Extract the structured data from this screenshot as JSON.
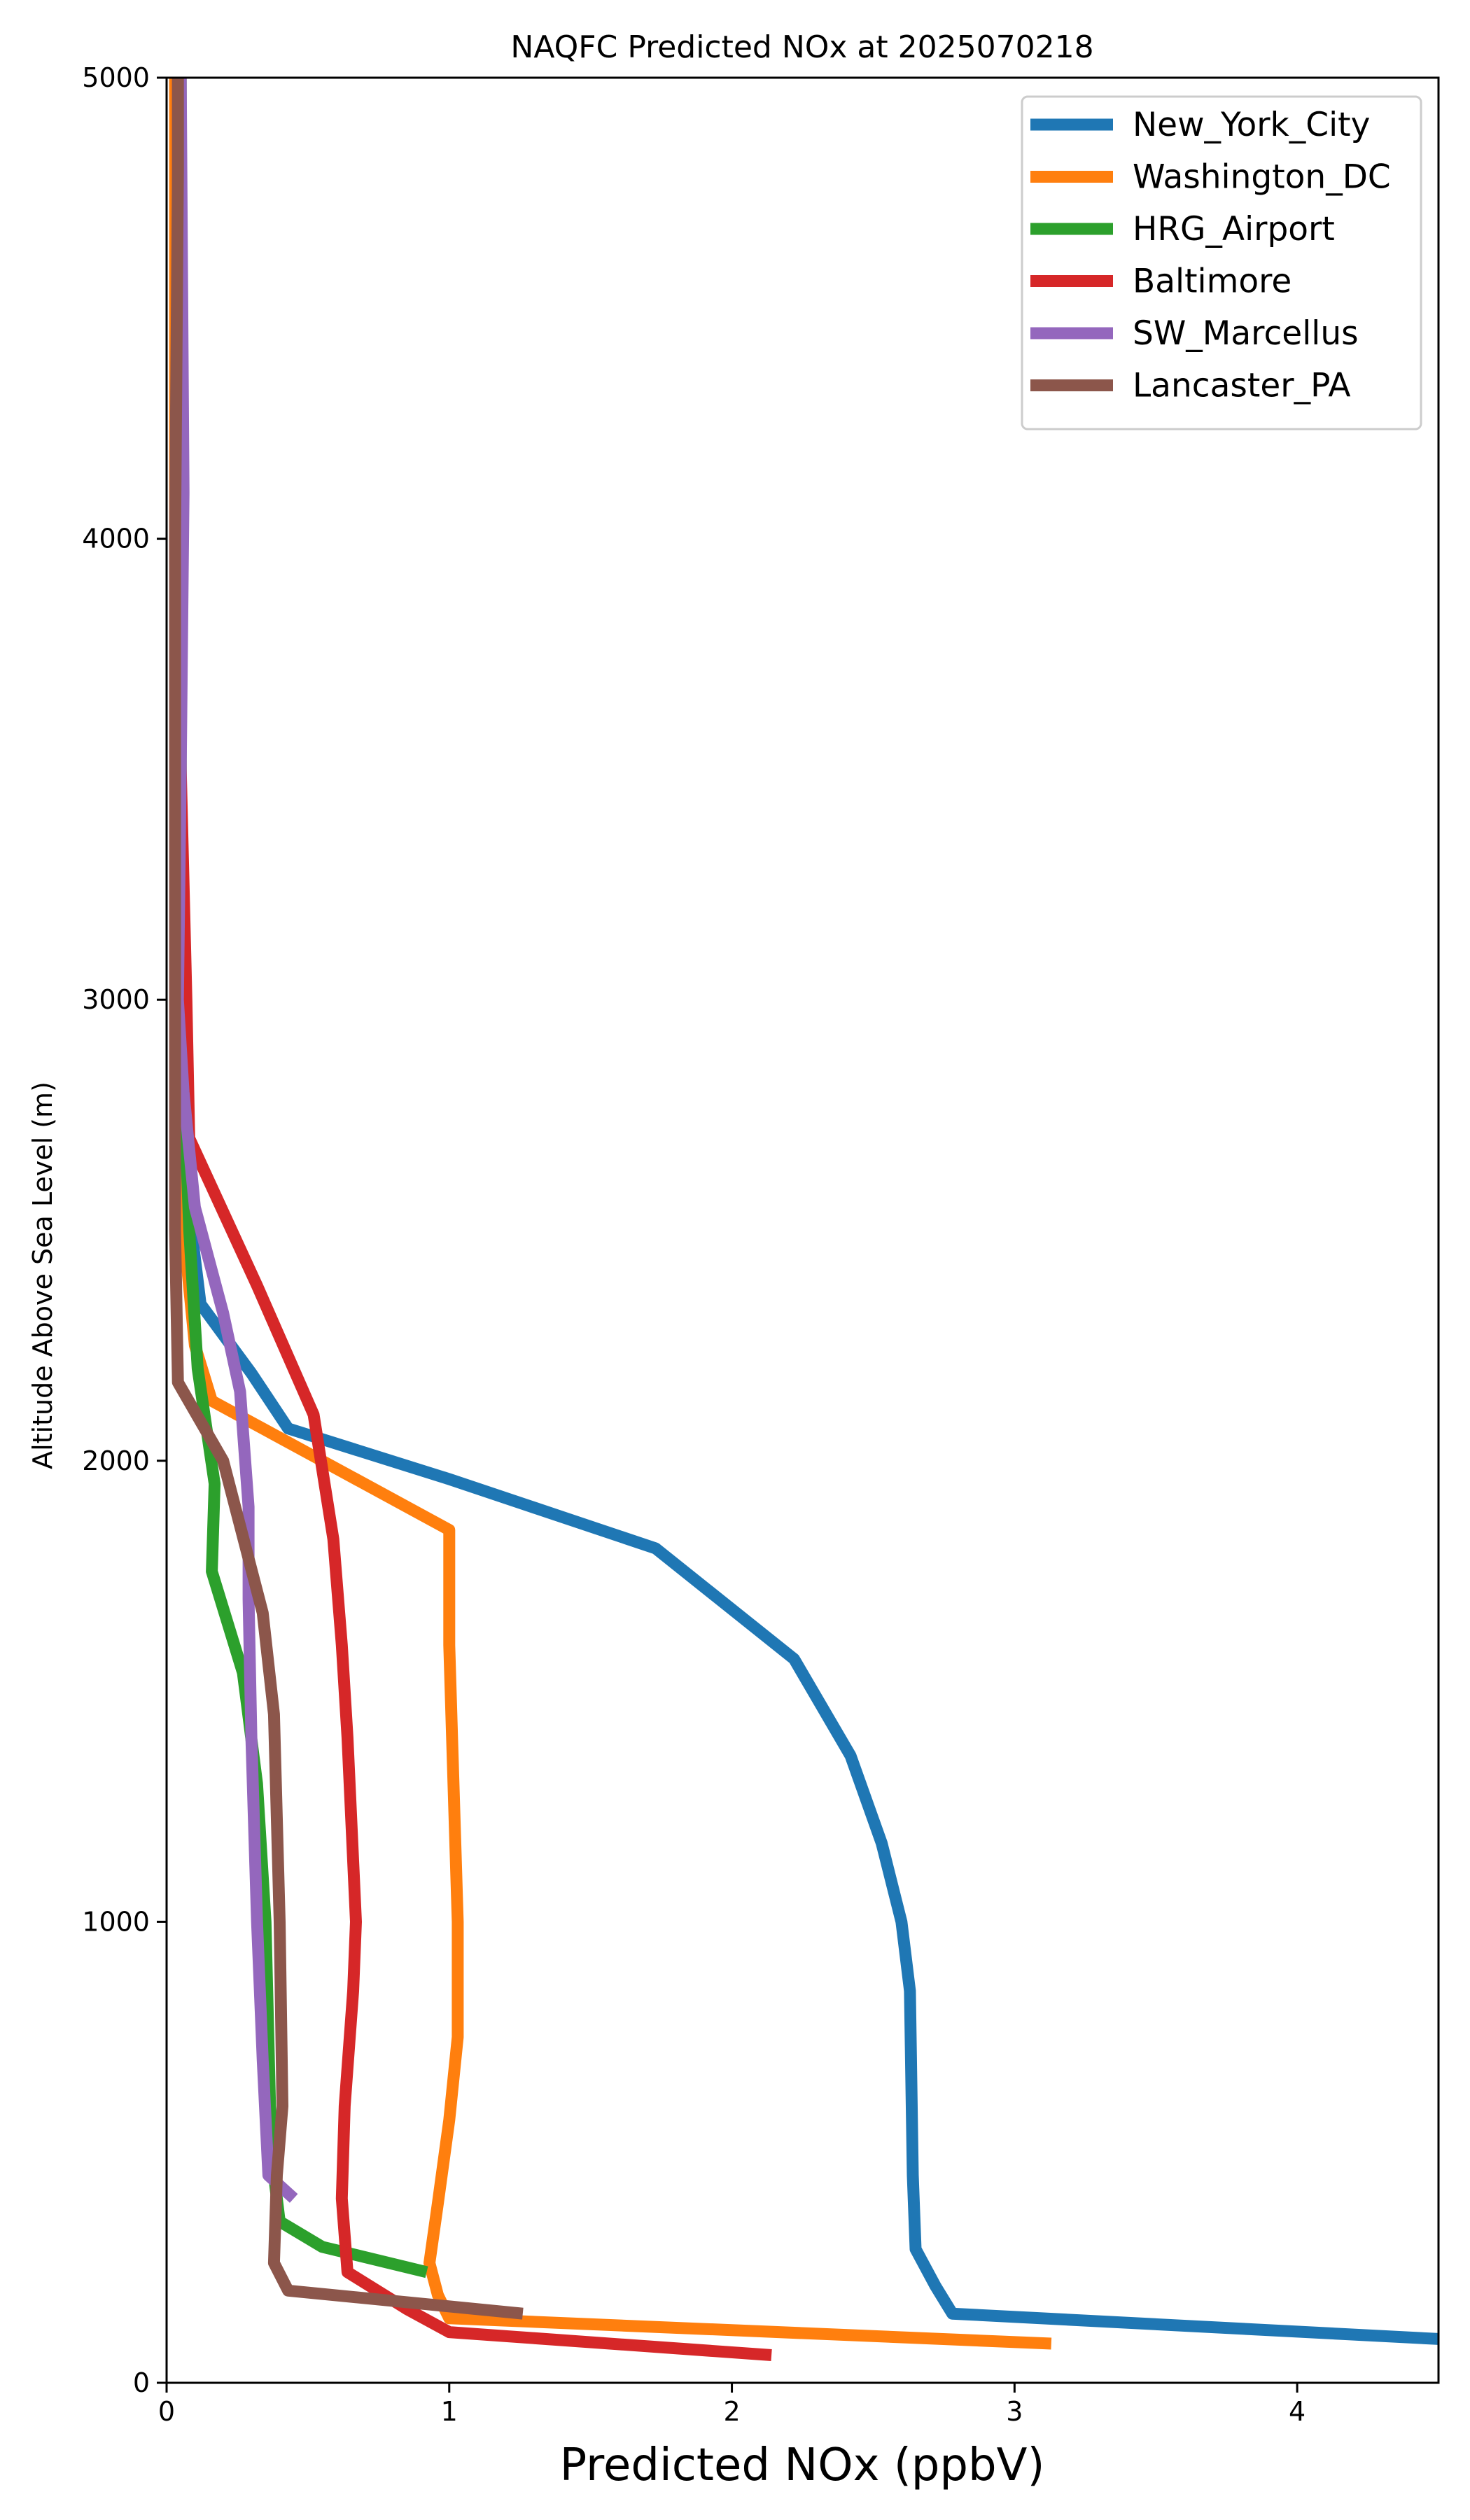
{
  "chart_data": {
    "type": "line",
    "title": "NAQFC Predicted NOx at 2025070218",
    "xlabel": "Predicted NOx (ppbV)",
    "ylabel": "Altitude Above Sea Level (m)",
    "xlim": [
      0,
      4.5
    ],
    "ylim": [
      0,
      5000
    ],
    "xticks": [
      0,
      1,
      2,
      3,
      4
    ],
    "yticks": [
      0,
      1000,
      2000,
      3000,
      4000,
      5000
    ],
    "grid": false,
    "legend_position": "top-right",
    "series": [
      {
        "name": "New_York_City",
        "color": "#1f77b4",
        "points": [
          [
            4.5,
            95
          ],
          [
            2.78,
            150
          ],
          [
            2.72,
            210
          ],
          [
            2.65,
            290
          ],
          [
            2.64,
            450
          ],
          [
            2.63,
            850
          ],
          [
            2.6,
            1000
          ],
          [
            2.53,
            1170
          ],
          [
            2.42,
            1360
          ],
          [
            2.22,
            1570
          ],
          [
            1.73,
            1810
          ],
          [
            1.0,
            1960
          ],
          [
            0.43,
            2070
          ],
          [
            0.3,
            2190
          ],
          [
            0.12,
            2340
          ],
          [
            0.08,
            2540
          ],
          [
            0.05,
            3000
          ],
          [
            0.04,
            4000
          ],
          [
            0.03,
            5000
          ]
        ]
      },
      {
        "name": "Washington_DC",
        "color": "#ff7f0e",
        "points": [
          [
            3.13,
            85
          ],
          [
            1.0,
            140
          ],
          [
            0.96,
            190
          ],
          [
            0.93,
            260
          ],
          [
            0.96,
            390
          ],
          [
            1.0,
            570
          ],
          [
            1.03,
            750
          ],
          [
            1.03,
            1000
          ],
          [
            1.01,
            1400
          ],
          [
            1.0,
            1600
          ],
          [
            1.0,
            1850
          ],
          [
            0.55,
            2000
          ],
          [
            0.16,
            2130
          ],
          [
            0.1,
            2250
          ],
          [
            0.06,
            2500
          ],
          [
            0.04,
            3000
          ],
          [
            0.03,
            4000
          ],
          [
            0.03,
            5000
          ]
        ]
      },
      {
        "name": "HRG_Airport",
        "color": "#2ca02c",
        "points": [
          [
            0.92,
            240
          ],
          [
            0.55,
            295
          ],
          [
            0.4,
            350
          ],
          [
            0.37,
            500
          ],
          [
            0.35,
            1000
          ],
          [
            0.32,
            1300
          ],
          [
            0.27,
            1540
          ],
          [
            0.16,
            1760
          ],
          [
            0.17,
            1950
          ],
          [
            0.11,
            2200
          ],
          [
            0.08,
            2500
          ],
          [
            0.05,
            3000
          ],
          [
            0.05,
            4000
          ],
          [
            0.05,
            5000
          ]
        ]
      },
      {
        "name": "Baltimore",
        "color": "#d62728",
        "points": [
          [
            2.14,
            60
          ],
          [
            1.0,
            110
          ],
          [
            0.85,
            160
          ],
          [
            0.64,
            240
          ],
          [
            0.62,
            400
          ],
          [
            0.63,
            600
          ],
          [
            0.66,
            850
          ],
          [
            0.67,
            1000
          ],
          [
            0.64,
            1400
          ],
          [
            0.62,
            1600
          ],
          [
            0.59,
            1830
          ],
          [
            0.52,
            2100
          ],
          [
            0.32,
            2380
          ],
          [
            0.08,
            2700
          ],
          [
            0.07,
            3000
          ],
          [
            0.05,
            3500
          ],
          [
            0.04,
            4000
          ],
          [
            0.04,
            5000
          ]
        ]
      },
      {
        "name": "SW_Marcellus",
        "color": "#9467bd",
        "points": [
          [
            0.45,
            400
          ],
          [
            0.36,
            450
          ],
          [
            0.34,
            700
          ],
          [
            0.32,
            1000
          ],
          [
            0.3,
            1400
          ],
          [
            0.29,
            1700
          ],
          [
            0.29,
            1900
          ],
          [
            0.26,
            2150
          ],
          [
            0.2,
            2320
          ],
          [
            0.1,
            2550
          ],
          [
            0.06,
            2800
          ],
          [
            0.04,
            3000
          ],
          [
            0.05,
            3500
          ],
          [
            0.06,
            4100
          ],
          [
            0.05,
            5000
          ]
        ]
      },
      {
        "name": "Lancaster_PA",
        "color": "#8c564b",
        "points": [
          [
            1.26,
            150
          ],
          [
            0.43,
            200
          ],
          [
            0.38,
            260
          ],
          [
            0.39,
            450
          ],
          [
            0.41,
            600
          ],
          [
            0.4,
            1000
          ],
          [
            0.38,
            1450
          ],
          [
            0.34,
            1670
          ],
          [
            0.2,
            2000
          ],
          [
            0.04,
            2170
          ],
          [
            0.03,
            2500
          ],
          [
            0.03,
            3000
          ],
          [
            0.03,
            4000
          ],
          [
            0.04,
            4800
          ],
          [
            0.04,
            5000
          ]
        ]
      }
    ]
  }
}
